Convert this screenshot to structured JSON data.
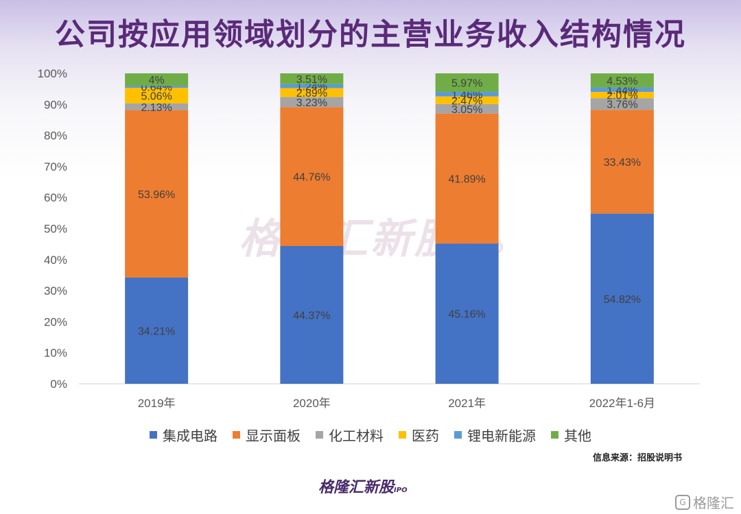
{
  "title": "公司按应用领域划分的主营业务收入结构情况",
  "source": "信息来源：招股说明书",
  "watermark": {
    "main": "格隆汇新股",
    "sub": "IPO"
  },
  "brand": {
    "main": "格隆汇新股",
    "sub": "IPO"
  },
  "corner_mark": "格隆汇",
  "colors": {
    "集成电路": "#4472C4",
    "显示面板": "#ED7D31",
    "化工材料": "#A5A5A5",
    "医药": "#FFC000",
    "锂电新能源": "#5B9BD5",
    "其他": "#70AD47"
  },
  "chart_data": {
    "type": "bar",
    "stacked": true,
    "percent": true,
    "categories": [
      "2019年",
      "2020年",
      "2021年",
      "2022年1-6月"
    ],
    "ylim": [
      0,
      100
    ],
    "yticks": [
      "0%",
      "10%",
      "20%",
      "30%",
      "40%",
      "50%",
      "60%",
      "70%",
      "80%",
      "90%",
      "100%"
    ],
    "legend_position": "bottom",
    "series": [
      {
        "name": "集成电路",
        "values": [
          34.21,
          44.37,
          45.16,
          54.82
        ],
        "labels": [
          "34.21%",
          "44.37%",
          "45.16%",
          "54.82%"
        ]
      },
      {
        "name": "显示面板",
        "values": [
          53.96,
          44.76,
          41.89,
          33.43
        ],
        "labels": [
          "53.96%",
          "44.76%",
          "41.89%",
          "33.43%"
        ]
      },
      {
        "name": "化工材料",
        "values": [
          2.13,
          3.23,
          3.05,
          3.76
        ],
        "labels": [
          "2.13%",
          "3.23%",
          "3.05%",
          "3.76%"
        ]
      },
      {
        "name": "医药",
        "values": [
          5.06,
          2.89,
          2.47,
          2.01
        ],
        "labels": [
          "5.06%",
          "2.89%",
          "2.47%",
          "2.01%"
        ]
      },
      {
        "name": "锂电新能源",
        "values": [
          0.64,
          1.24,
          1.46,
          1.44
        ],
        "labels": [
          "0.64%",
          "1.24%",
          "1.46%",
          "1.44%"
        ]
      },
      {
        "name": "其他",
        "values": [
          4,
          3.51,
          5.97,
          4.53
        ],
        "labels": [
          "4%",
          "3.51%",
          "5.97%",
          "4.53%"
        ]
      }
    ]
  }
}
